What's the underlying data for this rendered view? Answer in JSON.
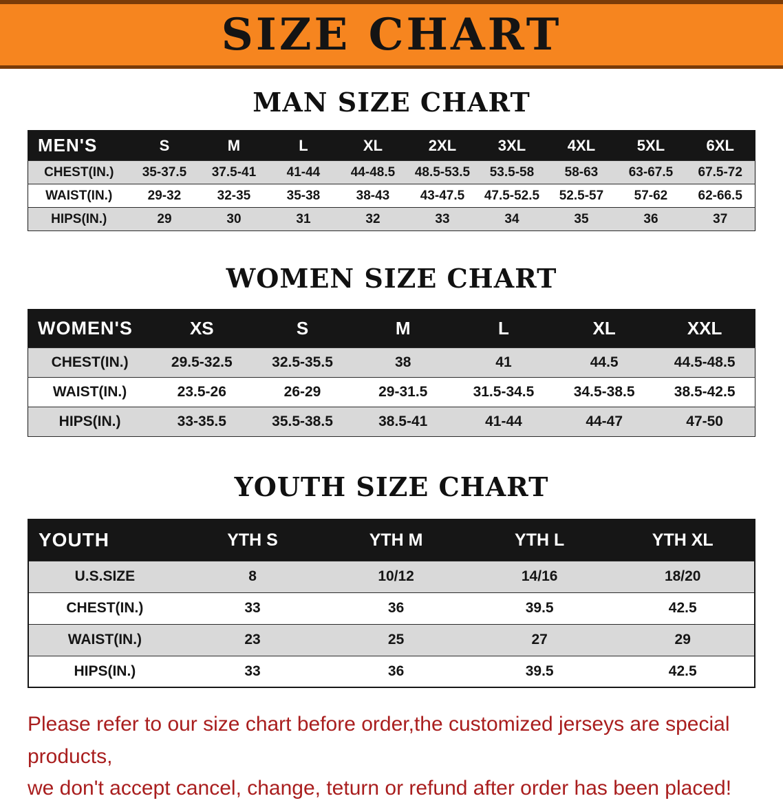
{
  "banner": {
    "title": "SIZE CHART"
  },
  "colors": {
    "banner_orange": "#f6851f",
    "banner_border": "#7a3b08",
    "table_header_black": "#161616",
    "row_gray": "#d9d9d9",
    "row_white": "#ffffff",
    "footer_red": "#a91e1e"
  },
  "footer": {
    "line1": "Please refer to our size chart before order,the customized jerseys are special products,",
    "line2": "we don't accept cancel, change, teturn or refund after order has been placed!"
  },
  "chart_data": [
    {
      "type": "table",
      "title": "MAN SIZE CHART",
      "columns": [
        "MEN'S",
        "S",
        "M",
        "L",
        "XL",
        "2XL",
        "3XL",
        "4XL",
        "5XL",
        "6XL"
      ],
      "rows": [
        [
          "CHEST(IN.)",
          "35-37.5",
          "37.5-41",
          "41-44",
          "44-48.5",
          "48.5-53.5",
          "53.5-58",
          "58-63",
          "63-67.5",
          "67.5-72"
        ],
        [
          "WAIST(IN.)",
          "29-32",
          "32-35",
          "35-38",
          "38-43",
          "43-47.5",
          "47.5-52.5",
          "52.5-57",
          "57-62",
          "62-66.5"
        ],
        [
          "HIPS(IN.)",
          "29",
          "30",
          "31",
          "32",
          "33",
          "34",
          "35",
          "36",
          "37"
        ]
      ]
    },
    {
      "type": "table",
      "title": "WOMEN SIZE CHART",
      "columns": [
        "WOMEN'S",
        "XS",
        "S",
        "M",
        "L",
        "XL",
        "XXL"
      ],
      "rows": [
        [
          "CHEST(IN.)",
          "29.5-32.5",
          "32.5-35.5",
          "38",
          "41",
          "44.5",
          "44.5-48.5"
        ],
        [
          "WAIST(IN.)",
          "23.5-26",
          "26-29",
          "29-31.5",
          "31.5-34.5",
          "34.5-38.5",
          "38.5-42.5"
        ],
        [
          "HIPS(IN.)",
          "33-35.5",
          "35.5-38.5",
          "38.5-41",
          "41-44",
          "44-47",
          "47-50"
        ]
      ]
    },
    {
      "type": "table",
      "title": "YOUTH SIZE CHART",
      "columns": [
        "YOUTH",
        "YTH S",
        "YTH M",
        "YTH L",
        "YTH XL"
      ],
      "rows": [
        [
          "U.S.SIZE",
          "8",
          "10/12",
          "14/16",
          "18/20"
        ],
        [
          "CHEST(IN.)",
          "33",
          "36",
          "39.5",
          "42.5"
        ],
        [
          "WAIST(IN.)",
          "23",
          "25",
          "27",
          "29"
        ],
        [
          "HIPS(IN.)",
          "33",
          "36",
          "39.5",
          "42.5"
        ]
      ]
    }
  ]
}
